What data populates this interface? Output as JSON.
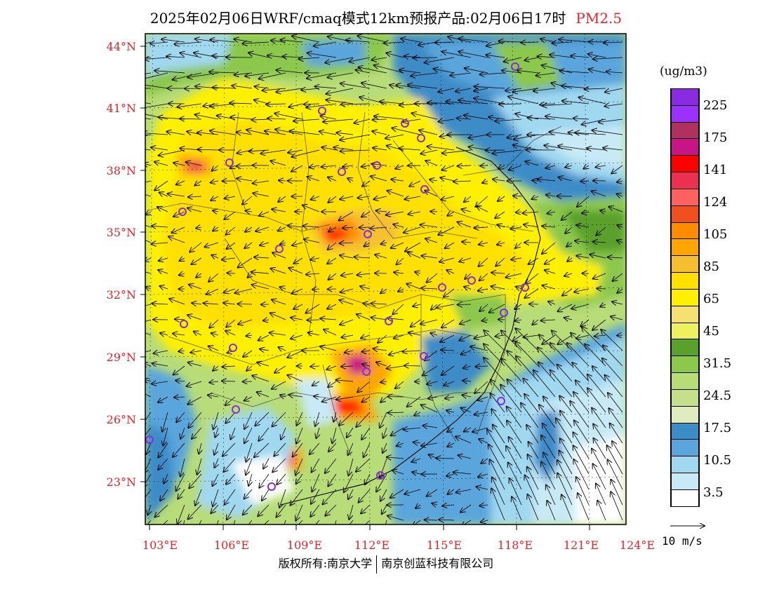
{
  "title": {
    "main": "2025年02月06日WRF/cmaq模式12km预报产品:02月06日17时",
    "product": "PM2.5"
  },
  "map": {
    "lat_labels": [
      "44°N",
      "41°N",
      "38°N",
      "35°N",
      "32°N",
      "29°N",
      "26°N",
      "23°N"
    ],
    "lon_labels": [
      "103°E",
      "106°E",
      "109°E",
      "112°E",
      "115°E",
      "118°E",
      "121°E",
      "124°E"
    ]
  },
  "legend": {
    "unit": "(ug/m3)",
    "labels": [
      "225",
      "175",
      "141",
      "124",
      "105",
      "85",
      "65",
      "45",
      "31.5",
      "24.5",
      "17.5",
      "10.5",
      "3.5"
    ],
    "colors": [
      "#8a2be2",
      "#9b30ff",
      "#b03060",
      "#c71585",
      "#ff0000",
      "#ee3050",
      "#ff6060",
      "#f05020",
      "#ff8c00",
      "#ffa500",
      "#f5c030",
      "#ffe000",
      "#fff000",
      "#f5e070",
      "#eef060",
      "#5aa02c",
      "#8cc84b",
      "#b8dc78",
      "#c6e08a",
      "#e0ecc0",
      "#3c8cc8",
      "#5aa6dc",
      "#a0d8f0",
      "#c8eaf6",
      "#ffffff"
    ]
  },
  "vector_legend": {
    "label": "10 m/s"
  },
  "footer": {
    "left": "版权所有:南京大学",
    "right": "南京创蓝科技有限公司"
  }
}
